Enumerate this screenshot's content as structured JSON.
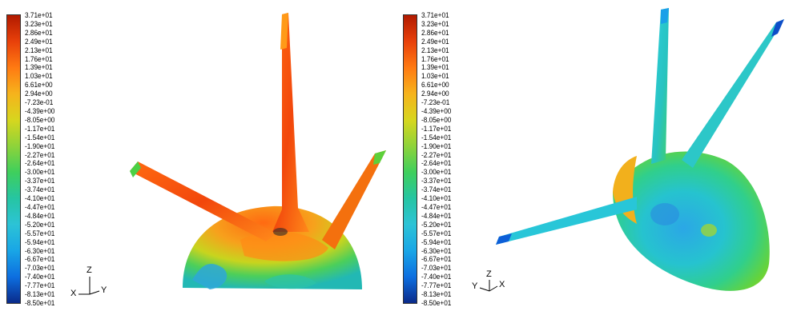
{
  "legend": {
    "labels": [
      "3.71e+01",
      "3.23e+01",
      "2.86e+01",
      "2.49e+01",
      "2.13e+01",
      "1.76e+01",
      "1.39e+01",
      "1.03e+01",
      "6.61e+00",
      "2.94e+00",
      "-7.23e-01",
      "-4.39e+00",
      "-8.05e+00",
      "-1.17e+01",
      "-1.54e+01",
      "-1.90e+01",
      "-2.27e+01",
      "-2.64e+01",
      "-3.00e+01",
      "-3.37e+01",
      "-3.74e+01",
      "-4.10e+01",
      "-4.47e+01",
      "-4.84e+01",
      "-5.20e+01",
      "-5.57e+01",
      "-5.94e+01",
      "-6.30e+01",
      "-6.67e+01",
      "-7.03e+01",
      "-7.40e+01",
      "-7.77e+01",
      "-8.13e+01",
      "-8.50e+01"
    ],
    "colors": [
      "#b11a00",
      "#e8400a",
      "#ff7a12",
      "#f6b31c",
      "#d7d61e",
      "#8ed33a",
      "#3fcf5c",
      "#26c5a2",
      "#2cc3d6",
      "#19a6e6",
      "#0d6fe0",
      "#0a2a8a"
    ]
  },
  "left_view": {
    "axes": {
      "up": "Z",
      "left": "X",
      "right": "Y"
    }
  },
  "right_view": {
    "axes": {
      "up": "Z",
      "left": "Y",
      "right": "X"
    }
  }
}
